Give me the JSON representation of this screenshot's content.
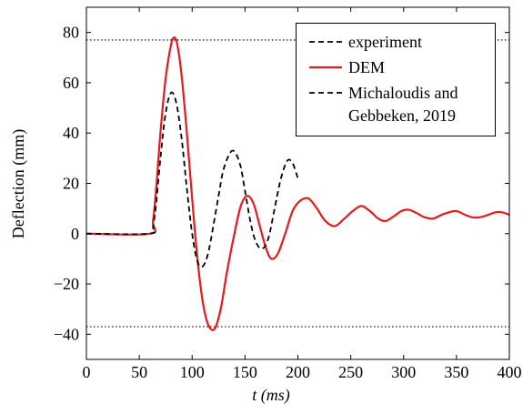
{
  "chart_data": {
    "type": "line",
    "x_label": "t (ms)",
    "y_label": "Deflection (mm)",
    "xlim": [
      0,
      400
    ],
    "ylim": [
      -50,
      90
    ],
    "xticks": [
      0,
      50,
      100,
      150,
      200,
      250,
      300,
      350,
      400
    ],
    "yticks": [
      {
        "value": -40,
        "label": "−40"
      },
      {
        "value": -20,
        "label": "−20"
      },
      0,
      20,
      40,
      60,
      80
    ],
    "reference_lines": {
      "values": [
        77,
        -37
      ],
      "color": "#000000",
      "style": "dotted"
    },
    "series": [
      {
        "name": "experiment",
        "color": "#000000",
        "style": "dashed",
        "x": [],
        "values": []
      },
      {
        "name": "DEM",
        "color": "#e41a1c",
        "style": "solid",
        "x": [
          0,
          60,
          63,
          66,
          70,
          75,
          80,
          83,
          86,
          90,
          95,
          100,
          105,
          110,
          115,
          121,
          127,
          133,
          140,
          146,
          152,
          158,
          164,
          170,
          175,
          181,
          188,
          195,
          202,
          210,
          218,
          226,
          235,
          244,
          252,
          260,
          268,
          276,
          283,
          291,
          298,
          305,
          313,
          320,
          328,
          336,
          343,
          350,
          358,
          365,
          372,
          380,
          387,
          393,
          400
        ],
        "values": [
          0,
          0,
          5,
          18,
          40,
          62,
          75,
          78,
          75,
          63,
          40,
          14,
          -10,
          -27,
          -36,
          -38,
          -30,
          -15,
          0,
          11,
          15,
          12,
          3,
          -6,
          -10,
          -8,
          0,
          9,
          13,
          14,
          10,
          5,
          3,
          6,
          9,
          11,
          9,
          6,
          5,
          7,
          9,
          9.5,
          8,
          6.5,
          6,
          7.5,
          8.5,
          9,
          7.5,
          6.5,
          6.5,
          7.5,
          8.5,
          8.5,
          7.5
        ]
      },
      {
        "name": "Michaloudis and Gebbeken, 2019",
        "color": "#000000",
        "style": "dashed",
        "x": [
          0,
          60,
          63,
          66,
          70,
          75,
          80,
          85,
          90,
          95,
          100,
          105,
          110,
          115,
          120,
          125,
          130,
          138,
          145,
          150,
          155,
          160,
          166,
          172,
          178,
          184,
          190,
          195,
          200
        ],
        "values": [
          0,
          0,
          3,
          12,
          30,
          48,
          56,
          52,
          38,
          18,
          0,
          -11,
          -13,
          -8,
          3,
          15,
          26,
          33,
          28,
          17,
          5,
          -3,
          -6,
          -2,
          10,
          22,
          29,
          28,
          22
        ]
      }
    ]
  }
}
